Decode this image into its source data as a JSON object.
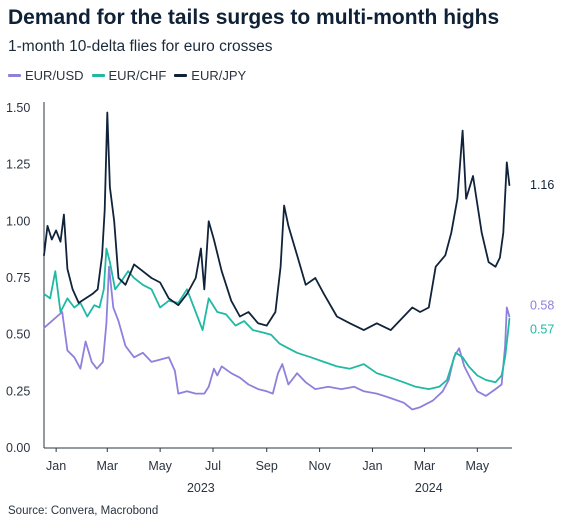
{
  "title": "Demand for the tails surges to multi-month highs",
  "subtitle": "1-month 10-delta flies for euro crosses",
  "source": "Source: Convera, Macrobond",
  "colors": {
    "EUR/USD": "#8f80dc",
    "EUR/CHF": "#20b9a3",
    "EUR/JPY": "#10233a"
  },
  "chart_data": {
    "type": "line",
    "title": "Demand for the tails surges to multi-month highs",
    "subtitle": "1-month 10-delta flies for euro crosses",
    "xlabel": "",
    "ylabel": "",
    "ylim": [
      0,
      1.5
    ],
    "yticks": [
      "0.00",
      "0.25",
      "0.50",
      "0.75",
      "1.00",
      "1.25",
      "1.50"
    ],
    "xtick_labels": [
      "Jan",
      "Mar",
      "May",
      "Jul",
      "Sep",
      "Nov",
      "Jan",
      "Mar",
      "May"
    ],
    "xtick_dates": [
      "2023-01-15",
      "2023-03-15",
      "2023-05-15",
      "2023-07-15",
      "2023-09-15",
      "2023-11-15",
      "2024-01-15",
      "2024-03-15",
      "2024-05-15"
    ],
    "year_labels": [
      {
        "label": "2023",
        "date": "2023-07-01"
      },
      {
        "label": "2024",
        "date": "2024-03-20"
      }
    ],
    "xlim": [
      "2023-01-01",
      "2024-06-24"
    ],
    "grid": false,
    "legend_position": "top-left",
    "series": [
      {
        "name": "EUR/USD",
        "end_label": "0.58",
        "points": [
          [
            "2023-01-01",
            0.53
          ],
          [
            "2023-01-10",
            0.56
          ],
          [
            "2023-01-22",
            0.6
          ],
          [
            "2023-01-28",
            0.43
          ],
          [
            "2023-02-05",
            0.4
          ],
          [
            "2023-02-12",
            0.35
          ],
          [
            "2023-02-18",
            0.47
          ],
          [
            "2023-02-25",
            0.38
          ],
          [
            "2023-03-03",
            0.35
          ],
          [
            "2023-03-10",
            0.38
          ],
          [
            "2023-03-14",
            0.55
          ],
          [
            "2023-03-17",
            0.8
          ],
          [
            "2023-03-22",
            0.62
          ],
          [
            "2023-03-28",
            0.56
          ],
          [
            "2023-04-05",
            0.45
          ],
          [
            "2023-04-15",
            0.4
          ],
          [
            "2023-04-25",
            0.42
          ],
          [
            "2023-05-05",
            0.38
          ],
          [
            "2023-05-15",
            0.39
          ],
          [
            "2023-05-25",
            0.4
          ],
          [
            "2023-06-01",
            0.34
          ],
          [
            "2023-06-05",
            0.24
          ],
          [
            "2023-06-15",
            0.25
          ],
          [
            "2023-06-25",
            0.24
          ],
          [
            "2023-07-05",
            0.24
          ],
          [
            "2023-07-10",
            0.27
          ],
          [
            "2023-07-16",
            0.35
          ],
          [
            "2023-07-20",
            0.32
          ],
          [
            "2023-07-25",
            0.36
          ],
          [
            "2023-08-05",
            0.33
          ],
          [
            "2023-08-15",
            0.31
          ],
          [
            "2023-08-25",
            0.28
          ],
          [
            "2023-09-05",
            0.26
          ],
          [
            "2023-09-15",
            0.25
          ],
          [
            "2023-09-22",
            0.24
          ],
          [
            "2023-09-28",
            0.33
          ],
          [
            "2023-10-03",
            0.37
          ],
          [
            "2023-10-10",
            0.28
          ],
          [
            "2023-10-20",
            0.33
          ],
          [
            "2023-10-30",
            0.29
          ],
          [
            "2023-11-10",
            0.26
          ],
          [
            "2023-11-25",
            0.27
          ],
          [
            "2023-12-10",
            0.26
          ],
          [
            "2023-12-25",
            0.27
          ],
          [
            "2024-01-05",
            0.25
          ],
          [
            "2024-01-20",
            0.24
          ],
          [
            "2024-02-05",
            0.22
          ],
          [
            "2024-02-20",
            0.2
          ],
          [
            "2024-03-01",
            0.17
          ],
          [
            "2024-03-10",
            0.18
          ],
          [
            "2024-03-25",
            0.21
          ],
          [
            "2024-04-05",
            0.25
          ],
          [
            "2024-04-12",
            0.3
          ],
          [
            "2024-04-18",
            0.4
          ],
          [
            "2024-04-24",
            0.44
          ],
          [
            "2024-04-30",
            0.36
          ],
          [
            "2024-05-08",
            0.3
          ],
          [
            "2024-05-15",
            0.25
          ],
          [
            "2024-05-25",
            0.23
          ],
          [
            "2024-06-05",
            0.26
          ],
          [
            "2024-06-12",
            0.28
          ],
          [
            "2024-06-16",
            0.45
          ],
          [
            "2024-06-18",
            0.62
          ],
          [
            "2024-06-21",
            0.58
          ]
        ]
      },
      {
        "name": "EUR/CHF",
        "end_label": "0.57",
        "points": [
          [
            "2023-01-01",
            0.68
          ],
          [
            "2023-01-08",
            0.66
          ],
          [
            "2023-01-14",
            0.78
          ],
          [
            "2023-01-20",
            0.6
          ],
          [
            "2023-01-28",
            0.66
          ],
          [
            "2023-02-05",
            0.62
          ],
          [
            "2023-02-12",
            0.64
          ],
          [
            "2023-02-20",
            0.58
          ],
          [
            "2023-02-28",
            0.63
          ],
          [
            "2023-03-06",
            0.62
          ],
          [
            "2023-03-11",
            0.7
          ],
          [
            "2023-03-14",
            0.88
          ],
          [
            "2023-03-18",
            0.82
          ],
          [
            "2023-03-24",
            0.7
          ],
          [
            "2023-04-01",
            0.74
          ],
          [
            "2023-04-08",
            0.78
          ],
          [
            "2023-04-15",
            0.75
          ],
          [
            "2023-04-25",
            0.72
          ],
          [
            "2023-05-05",
            0.7
          ],
          [
            "2023-05-15",
            0.62
          ],
          [
            "2023-05-25",
            0.65
          ],
          [
            "2023-06-05",
            0.64
          ],
          [
            "2023-06-15",
            0.7
          ],
          [
            "2023-06-25",
            0.6
          ],
          [
            "2023-07-03",
            0.52
          ],
          [
            "2023-07-10",
            0.66
          ],
          [
            "2023-07-20",
            0.6
          ],
          [
            "2023-07-30",
            0.59
          ],
          [
            "2023-08-10",
            0.54
          ],
          [
            "2023-08-20",
            0.56
          ],
          [
            "2023-08-30",
            0.52
          ],
          [
            "2023-09-10",
            0.51
          ],
          [
            "2023-09-20",
            0.5
          ],
          [
            "2023-09-30",
            0.46
          ],
          [
            "2023-10-10",
            0.44
          ],
          [
            "2023-10-20",
            0.42
          ],
          [
            "2023-11-05",
            0.4
          ],
          [
            "2023-11-20",
            0.38
          ],
          [
            "2023-12-05",
            0.36
          ],
          [
            "2023-12-20",
            0.35
          ],
          [
            "2024-01-05",
            0.37
          ],
          [
            "2024-01-20",
            0.33
          ],
          [
            "2024-02-05",
            0.31
          ],
          [
            "2024-02-20",
            0.29
          ],
          [
            "2024-03-05",
            0.27
          ],
          [
            "2024-03-20",
            0.26
          ],
          [
            "2024-04-01",
            0.27
          ],
          [
            "2024-04-10",
            0.3
          ],
          [
            "2024-04-20",
            0.42
          ],
          [
            "2024-04-28",
            0.4
          ],
          [
            "2024-05-05",
            0.36
          ],
          [
            "2024-05-15",
            0.32
          ],
          [
            "2024-05-25",
            0.3
          ],
          [
            "2024-06-05",
            0.29
          ],
          [
            "2024-06-12",
            0.32
          ],
          [
            "2024-06-16",
            0.4
          ],
          [
            "2024-06-19",
            0.5
          ],
          [
            "2024-06-21",
            0.57
          ]
        ]
      },
      {
        "name": "EUR/JPY",
        "end_label": "1.16",
        "points": [
          [
            "2023-01-01",
            0.85
          ],
          [
            "2023-01-05",
            0.98
          ],
          [
            "2023-01-10",
            0.92
          ],
          [
            "2023-01-15",
            0.96
          ],
          [
            "2023-01-20",
            0.91
          ],
          [
            "2023-01-24",
            1.03
          ],
          [
            "2023-01-28",
            0.79
          ],
          [
            "2023-02-03",
            0.7
          ],
          [
            "2023-02-10",
            0.64
          ],
          [
            "2023-02-18",
            0.66
          ],
          [
            "2023-02-26",
            0.68
          ],
          [
            "2023-03-04",
            0.7
          ],
          [
            "2023-03-09",
            0.85
          ],
          [
            "2023-03-12",
            1.05
          ],
          [
            "2023-03-15",
            1.48
          ],
          [
            "2023-03-18",
            1.15
          ],
          [
            "2023-03-23",
            1.0
          ],
          [
            "2023-03-28",
            0.75
          ],
          [
            "2023-04-05",
            0.72
          ],
          [
            "2023-04-15",
            0.81
          ],
          [
            "2023-04-25",
            0.78
          ],
          [
            "2023-05-05",
            0.75
          ],
          [
            "2023-05-15",
            0.73
          ],
          [
            "2023-05-25",
            0.66
          ],
          [
            "2023-06-05",
            0.63
          ],
          [
            "2023-06-15",
            0.68
          ],
          [
            "2023-06-25",
            0.75
          ],
          [
            "2023-07-01",
            0.88
          ],
          [
            "2023-07-05",
            0.7
          ],
          [
            "2023-07-10",
            1.0
          ],
          [
            "2023-07-16",
            0.92
          ],
          [
            "2023-07-25",
            0.78
          ],
          [
            "2023-08-05",
            0.65
          ],
          [
            "2023-08-15",
            0.58
          ],
          [
            "2023-08-25",
            0.6
          ],
          [
            "2023-09-05",
            0.55
          ],
          [
            "2023-09-15",
            0.54
          ],
          [
            "2023-09-25",
            0.6
          ],
          [
            "2023-10-01",
            0.8
          ],
          [
            "2023-10-05",
            1.07
          ],
          [
            "2023-10-10",
            0.98
          ],
          [
            "2023-10-20",
            0.85
          ],
          [
            "2023-10-30",
            0.72
          ],
          [
            "2023-11-10",
            0.75
          ],
          [
            "2023-11-20",
            0.68
          ],
          [
            "2023-12-05",
            0.58
          ],
          [
            "2023-12-20",
            0.55
          ],
          [
            "2024-01-05",
            0.52
          ],
          [
            "2024-01-20",
            0.55
          ],
          [
            "2024-02-05",
            0.52
          ],
          [
            "2024-02-20",
            0.58
          ],
          [
            "2024-03-01",
            0.62
          ],
          [
            "2024-03-10",
            0.6
          ],
          [
            "2024-03-20",
            0.62
          ],
          [
            "2024-03-28",
            0.8
          ],
          [
            "2024-04-08",
            0.85
          ],
          [
            "2024-04-15",
            0.95
          ],
          [
            "2024-04-22",
            1.1
          ],
          [
            "2024-04-28",
            1.4
          ],
          [
            "2024-05-02",
            1.1
          ],
          [
            "2024-05-10",
            1.2
          ],
          [
            "2024-05-20",
            0.95
          ],
          [
            "2024-05-28",
            0.82
          ],
          [
            "2024-06-05",
            0.8
          ],
          [
            "2024-06-10",
            0.84
          ],
          [
            "2024-06-14",
            0.95
          ],
          [
            "2024-06-18",
            1.26
          ],
          [
            "2024-06-21",
            1.16
          ]
        ]
      }
    ]
  }
}
